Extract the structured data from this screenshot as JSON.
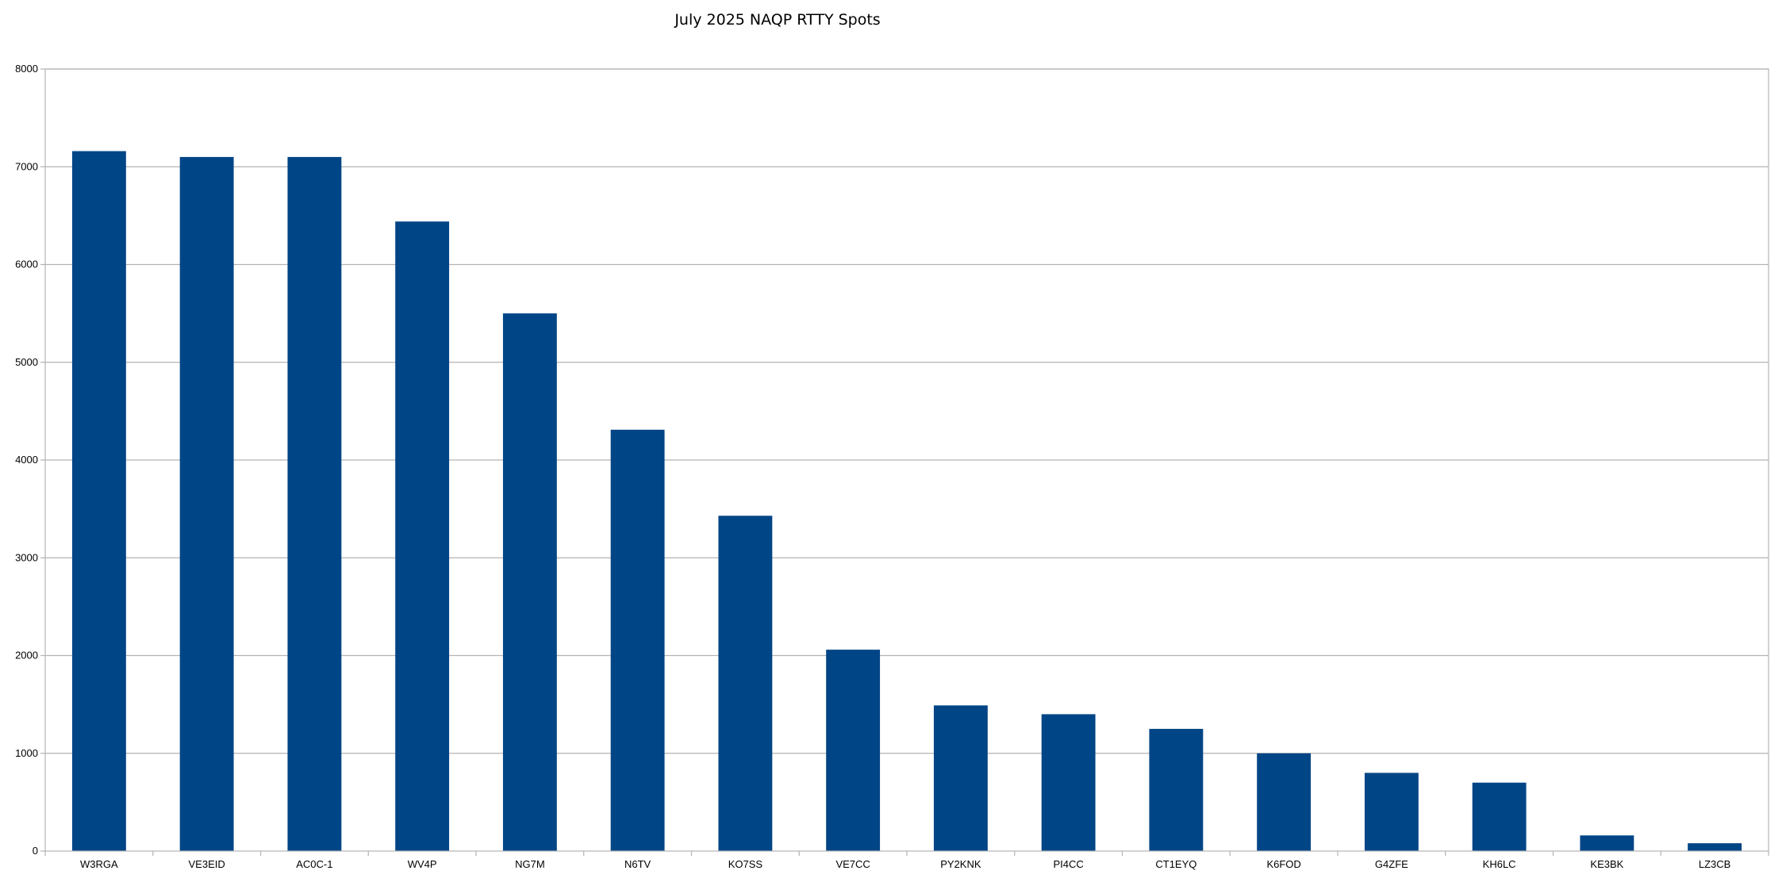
{
  "chart_data": {
    "type": "bar",
    "title": "July 2025 NAQP RTTY Spots",
    "xlabel": "",
    "ylabel": "",
    "categories": [
      "W3RGA",
      "VE3EID",
      "AC0C-1",
      "WV4P",
      "NG7M",
      "N6TV",
      "KO7SS",
      "VE7CC",
      "PY2KNK",
      "PI4CC",
      "CT1EYQ",
      "K6FOD",
      "G4ZFE",
      "KH6LC",
      "KE3BK",
      "LZ3CB"
    ],
    "values": [
      7160,
      7100,
      7100,
      6440,
      5500,
      4310,
      3430,
      2060,
      1490,
      1400,
      1250,
      1000,
      800,
      700,
      160,
      80
    ],
    "ylim": [
      0,
      8000
    ],
    "yticks": [
      0,
      1000,
      2000,
      3000,
      4000,
      5000,
      6000,
      7000,
      8000
    ],
    "grid": true,
    "legend": "none",
    "colors": {
      "bar": "#004586",
      "grid": "#b3b3b3",
      "axis": "#b3b3b3",
      "text": "#000000"
    }
  }
}
